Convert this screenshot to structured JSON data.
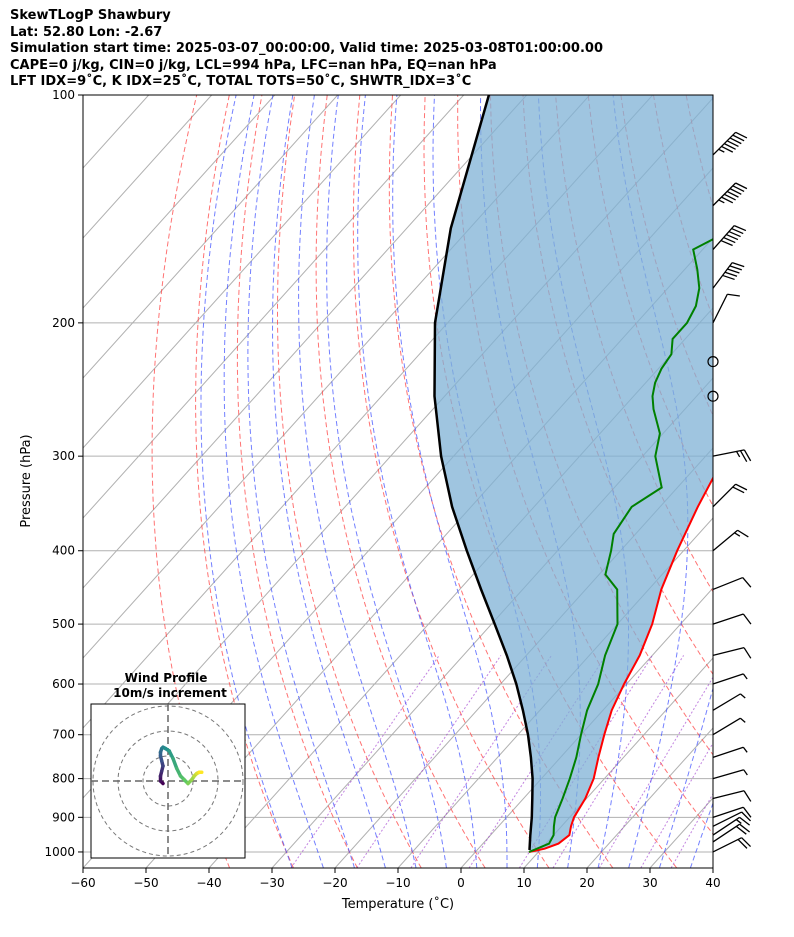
{
  "header": {
    "line1": "SkewTLogP Shawbury",
    "line2": "Lat: 52.80   Lon: -2.67",
    "line3": "Simulation start time: 2025-03-07_00:00:00, Valid time: 2025-03-08T01:00:00.00",
    "line4": "CAPE=0 j/kg, CIN=0 j/kg, LCL=994 hPa, LFC=nan hPa, EQ=nan hPa",
    "line5": "LFT IDX=9˚C, K IDX=25˚C, TOTAL TOTS=50˚C, SHWTR_IDX=3˚C"
  },
  "chart_data": {
    "type": "line",
    "title": "SkewTLogP Shawbury",
    "xlabel": "Temperature (˚C)",
    "ylabel": "Pressure (hPa)",
    "xlim": [
      -60,
      40
    ],
    "ylim": [
      1050,
      100
    ],
    "y_scale": "log",
    "x_ticks": [
      "−60",
      "−50",
      "−40",
      "−30",
      "−20",
      "−10",
      "0",
      "10",
      "20",
      "30",
      "40"
    ],
    "y_ticks": [
      "1000",
      "900",
      "800",
      "700",
      "600",
      "500",
      "400",
      "300",
      "200",
      "100"
    ],
    "grid": true,
    "series": [
      {
        "color": "#ff0000",
        "pressure": [
          1000,
          990,
          975,
          950,
          925,
          900,
          850,
          800,
          750,
          700,
          650,
          600,
          550,
          500,
          450,
          400,
          350,
          300,
          275,
          250,
          240,
          230,
          220,
          210,
          200,
          190,
          180,
          170,
          160,
          150,
          140,
          130,
          120,
          110,
          100
        ],
        "values": [
          8.5,
          10.5,
          12,
          12.5,
          11.5,
          10.7,
          9.8,
          8.3,
          6.0,
          3.7,
          1.4,
          -0.4,
          -2.0,
          -4.5,
          -8.0,
          -11.0,
          -14.0,
          -17.0,
          -19.5,
          -23.0,
          -25.0,
          -27.0,
          -28.0,
          -28.0,
          -27.8,
          -26.5,
          -24.3,
          -22.4,
          -21.0,
          -20.0,
          -19.5,
          -19.2,
          -19.0,
          -18.8,
          -18.6
        ]
      },
      {
        "color": "#008000",
        "pressure": [
          1000,
          975,
          950,
          925,
          900,
          850,
          800,
          750,
          700,
          650,
          600,
          550,
          500,
          450,
          430,
          400,
          380,
          350,
          330,
          300,
          280,
          260,
          250,
          240,
          230,
          220,
          210,
          200,
          190,
          180,
          170,
          160,
          150,
          140,
          130,
          120,
          110,
          100
        ],
        "values": [
          8.5,
          10.5,
          10.0,
          8.8,
          7.7,
          6.2,
          4.5,
          2.5,
          0.0,
          -2.5,
          -4.5,
          -7.5,
          -10.0,
          -15.0,
          -19.0,
          -21.5,
          -23.5,
          -24.5,
          -22.5,
          -28.0,
          -30.5,
          -35.0,
          -37.0,
          -38.5,
          -39.5,
          -40.0,
          -42.0,
          -42.0,
          -43.0,
          -45.0,
          -48.0,
          -51.5,
          -48.0,
          -46.5,
          -44.5,
          -42.5,
          -40.5,
          -38.5
        ]
      },
      {
        "color": "#000000",
        "pressure": [
          994,
          950,
          900,
          850,
          800,
          750,
          700,
          650,
          600,
          550,
          500,
          450,
          400,
          350,
          300,
          250,
          200,
          150,
          100
        ],
        "values": [
          8.3,
          6.3,
          4.0,
          1.4,
          -1.4,
          -4.7,
          -8.4,
          -12.7,
          -17.5,
          -23.1,
          -29.5,
          -36.6,
          -44.4,
          -53.0,
          -62.0,
          -71.6,
          -82.0,
          -93.0,
          -106.0
        ]
      }
    ],
    "wind_barbs": {
      "pressure": [
        1000,
        970,
        950,
        925,
        900,
        850,
        800,
        750,
        700,
        650,
        600,
        550,
        500,
        450,
        400,
        350,
        300,
        250,
        225,
        200,
        180,
        160,
        140,
        120
      ],
      "u_kt": [
        20,
        15,
        12,
        10,
        9,
        8,
        7,
        6,
        5,
        5,
        6,
        8,
        9,
        10,
        12,
        15,
        25,
        0,
        0,
        5,
        30,
        40,
        45,
        45
      ],
      "v_kt": [
        10,
        10,
        8,
        5,
        3,
        2,
        2,
        2,
        3,
        3,
        2,
        2,
        3,
        4,
        10,
        15,
        5,
        0,
        0,
        10,
        40,
        45,
        45,
        45
      ]
    },
    "hodograph": {
      "title": "Wind Profile",
      "subtitle": "10m/s increment",
      "u": [
        -2,
        -3,
        -3,
        -2.5,
        -2,
        -2.5,
        -3,
        -3,
        -2.5,
        -2,
        -1,
        0.5,
        2,
        3.5,
        5,
        6.5,
        8,
        9.5,
        10.5,
        11.5,
        12.5,
        13.5
      ],
      "v": [
        -1,
        0,
        2,
        4,
        6,
        8,
        10,
        11.5,
        13,
        13.5,
        13,
        12,
        9,
        5,
        2,
        0.5,
        -1,
        0.5,
        2,
        3,
        3.5,
        3.5
      ]
    }
  }
}
